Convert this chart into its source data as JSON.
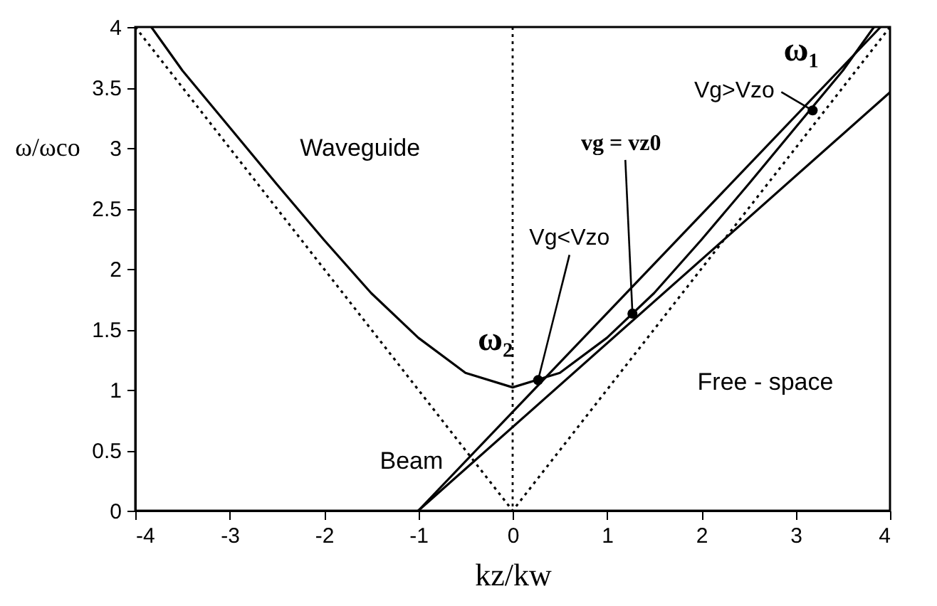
{
  "chart_data": {
    "type": "line",
    "xlabel": "kz/kw",
    "ylabel": "ω/ωco",
    "xlim": [
      -4,
      4
    ],
    "ylim": [
      0,
      4
    ],
    "xticks": [
      -4,
      -3,
      -2,
      -1,
      0,
      1,
      2,
      3,
      4
    ],
    "yticks": [
      0,
      0.5,
      1,
      1.5,
      2,
      2.5,
      3,
      3.5,
      4
    ],
    "grid": false,
    "series": [
      {
        "name": "Waveguide",
        "color": "#000000",
        "line_style": "solid",
        "x": [
          -3.83,
          -3.5,
          -3,
          -2.5,
          -2,
          -1.5,
          -1,
          -0.5,
          0,
          0.5,
          1,
          1.5,
          2,
          2.5,
          3,
          3.5,
          3.83
        ],
        "values": [
          4,
          3.64,
          3.17,
          2.7,
          2.24,
          1.8,
          1.43,
          1.14,
          1.02,
          1.14,
          1.43,
          1.8,
          2.24,
          2.7,
          3.17,
          3.64,
          4
        ]
      },
      {
        "name": "Free - space",
        "color": "#000000",
        "line_style": "dotted",
        "x": [
          -4,
          0,
          4
        ],
        "values": [
          4,
          0,
          4
        ]
      },
      {
        "name": "Beam",
        "color": "#000000",
        "line_style": "solid",
        "x": [
          -1,
          4
        ],
        "values": [
          0,
          3.46
        ]
      },
      {
        "color": "#000000",
        "line_style": "solid",
        "x": [
          -1,
          3.9
        ],
        "values": [
          0,
          4
        ]
      },
      {
        "type": "scatter",
        "color": "#000000",
        "marker": "circle",
        "x": [
          0.27,
          1.27,
          3.18
        ],
        "values": [
          1.08,
          1.63,
          3.31
        ]
      }
    ],
    "ref_lines": [
      {
        "axis": "x",
        "value": 0,
        "line_style": "dotted",
        "color": "#000000"
      }
    ],
    "annotations": [
      {
        "text": "ω₂",
        "x": 0.27,
        "y": 1.08
      },
      {
        "text": "Vg<Vzo",
        "x": 0.27,
        "y": 1.08
      },
      {
        "text": "vg = vz0",
        "x": 1.27,
        "y": 1.63
      },
      {
        "text": "Vg>Vzo",
        "x": 3.18,
        "y": 3.31
      },
      {
        "text": "ω₁",
        "x": 3.18,
        "y": 3.31
      }
    ]
  }
}
